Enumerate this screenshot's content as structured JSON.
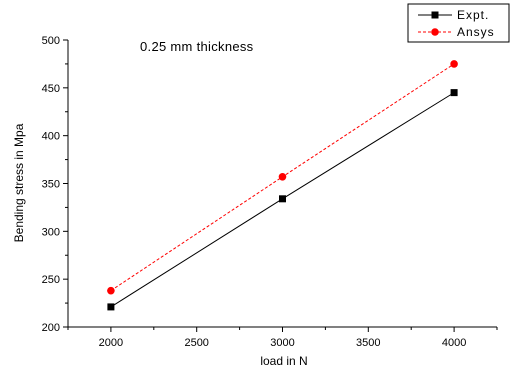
{
  "chart_data": {
    "type": "line",
    "annotation": "0.25 mm thickness",
    "xlabel": "load in N",
    "ylabel": "Bending stress in Mpa",
    "xlim": [
      1750,
      4250
    ],
    "ylim": [
      200,
      500
    ],
    "xticks": [
      2000,
      2500,
      3000,
      3500,
      4000
    ],
    "yticks": [
      200,
      250,
      300,
      350,
      400,
      450,
      500
    ],
    "grid": false,
    "legend_position": "top-right",
    "x": [
      2000,
      3000,
      4000
    ],
    "series": [
      {
        "name": "Expt.",
        "values": [
          221,
          334,
          445
        ],
        "color": "#000000",
        "line_style": "solid",
        "marker": "square"
      },
      {
        "name": "Ansys",
        "values": [
          238,
          357,
          475
        ],
        "color": "#ff0000",
        "line_style": "dashed",
        "marker": "circle"
      }
    ]
  }
}
